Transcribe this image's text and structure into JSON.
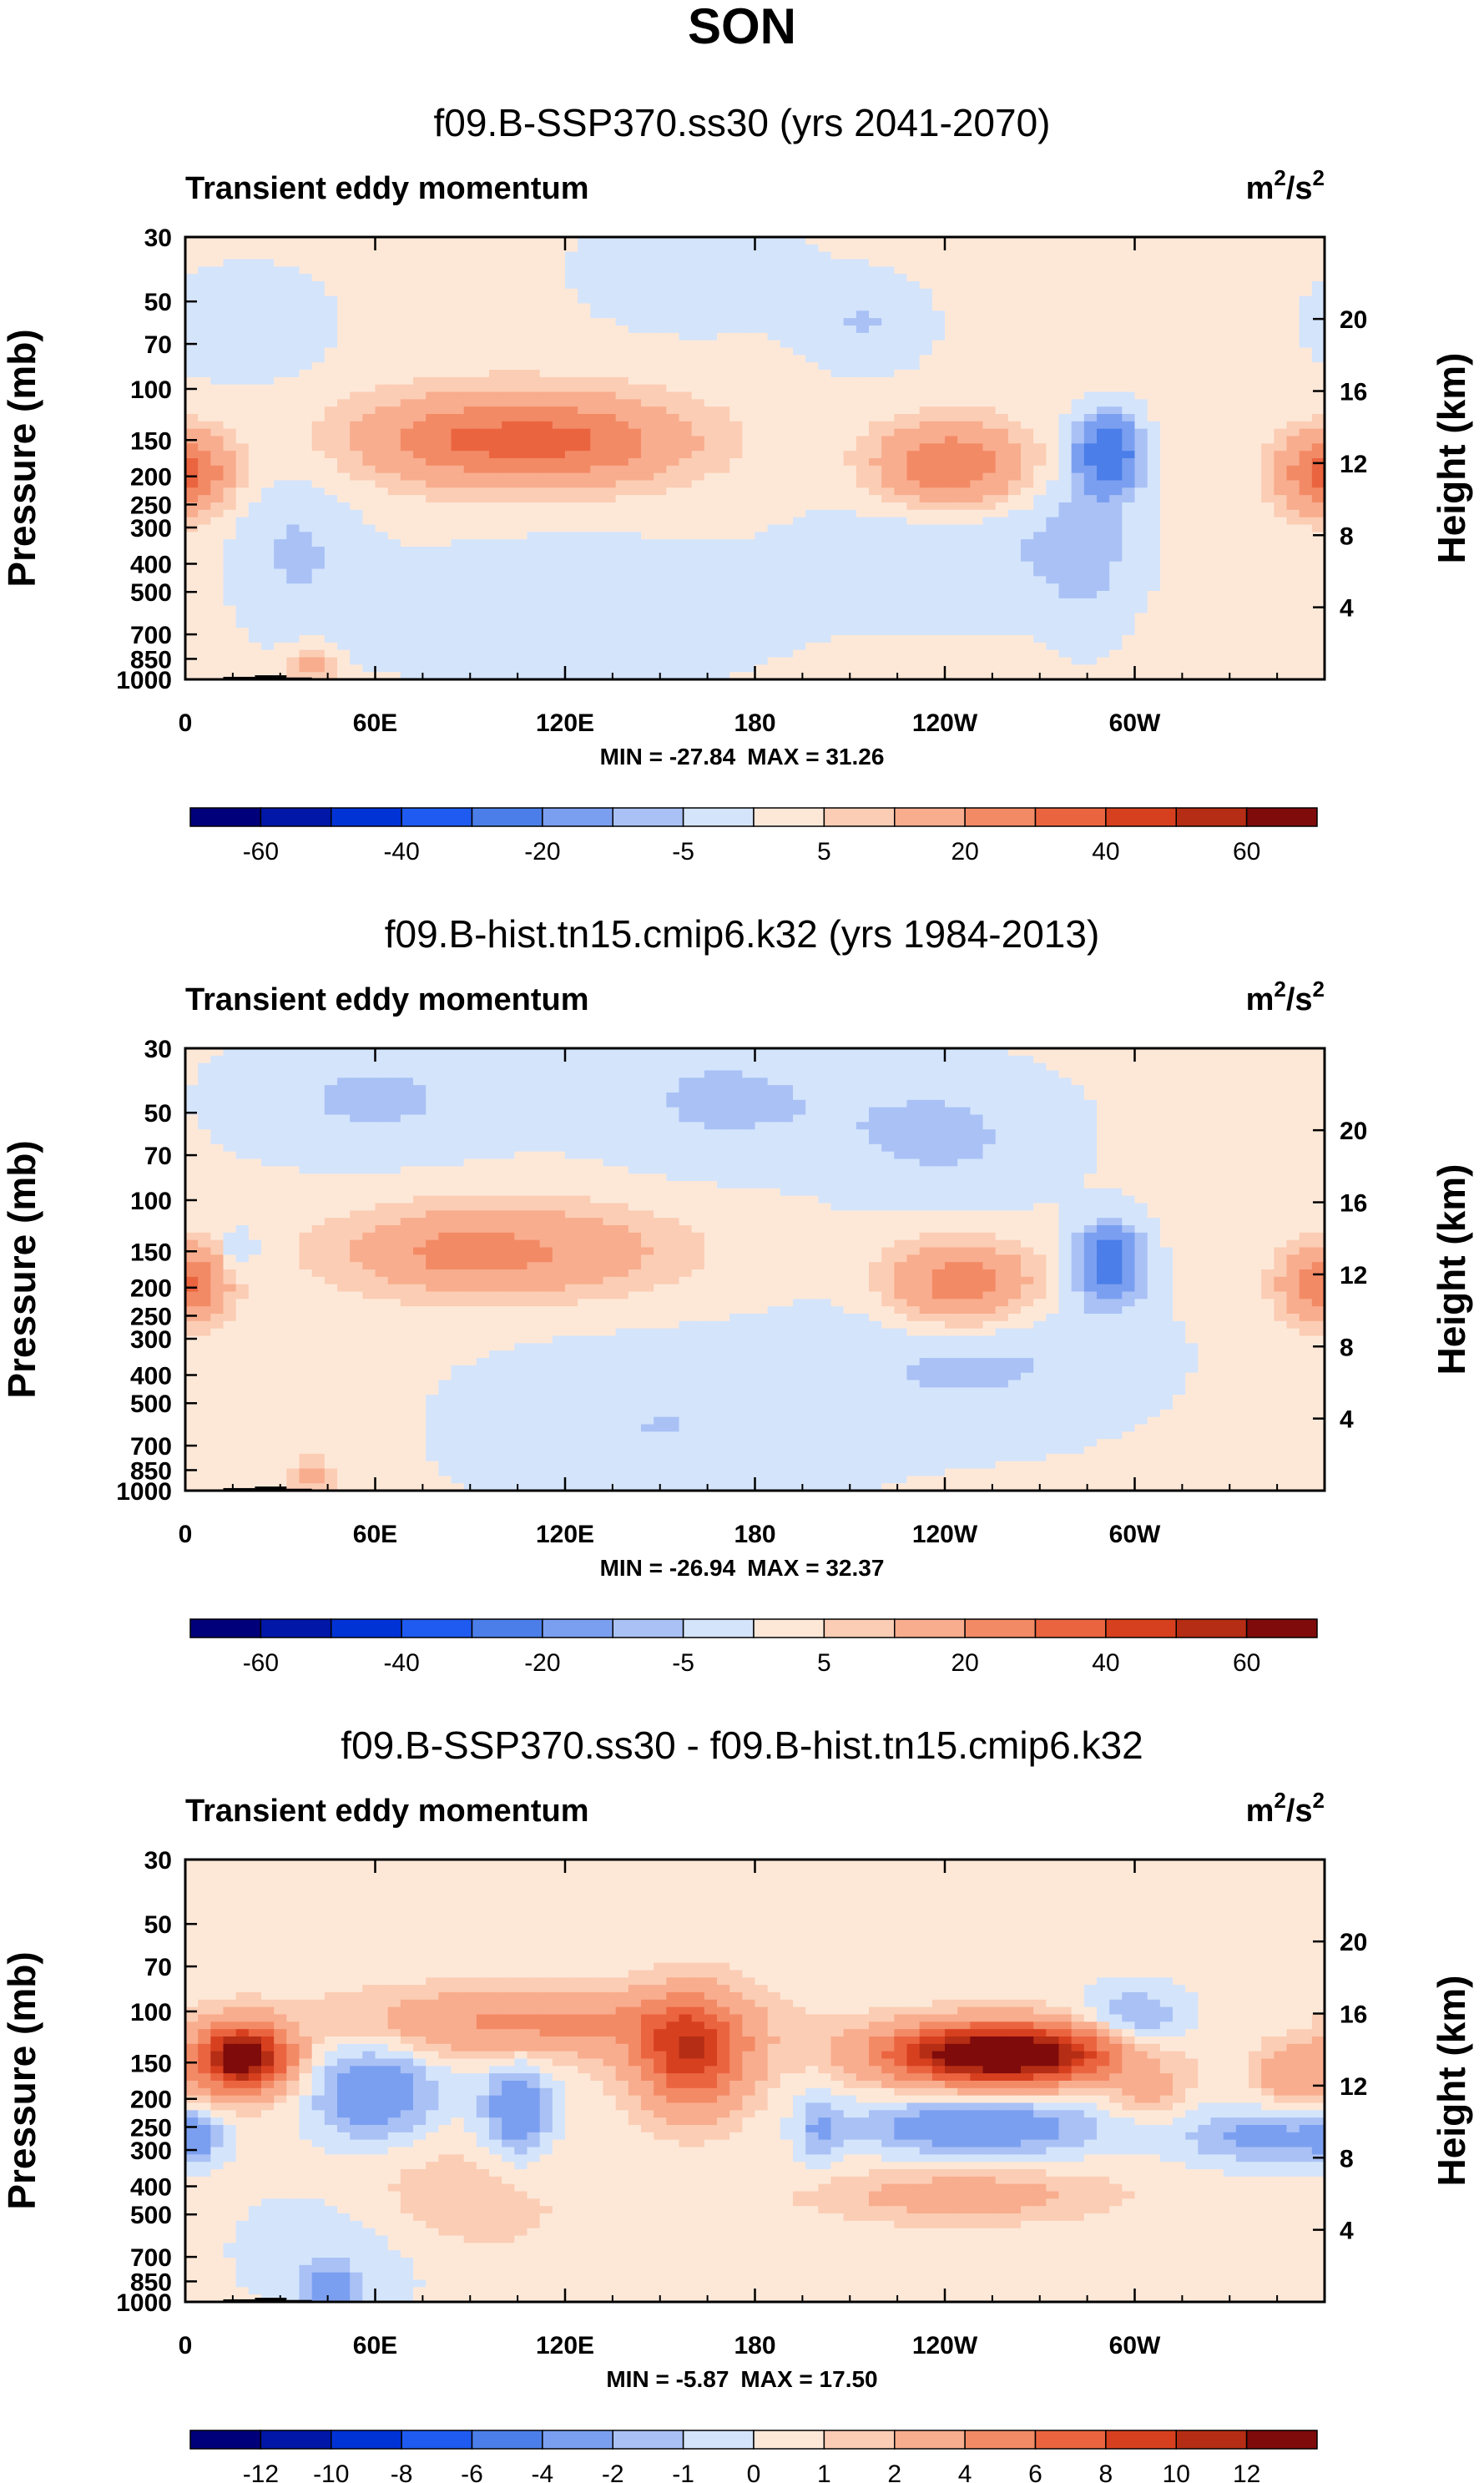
{
  "figure_title": "SON",
  "colors": {
    "wide_palette": [
      "#00007a",
      "#0017a8",
      "#0033d6",
      "#1f5bf0",
      "#4b7ee8",
      "#7b9ff0",
      "#a9c1f5",
      "#d4e4fb",
      "#fde8d8",
      "#fbcdb4",
      "#f8ad8e",
      "#f38a66",
      "#eb6440",
      "#d7401f",
      "#b52d14",
      "#7f0b0b"
    ],
    "topo": "#000000"
  },
  "chart_data": [
    {
      "type": "heatmap",
      "title": "f09.B-SSP370.ss30 (yrs 2041-2070)",
      "subtitle": "Transient eddy momentum",
      "units_base": "m",
      "units_exp": "2",
      "units_slash": "/s",
      "units_exp2": "2",
      "ylabel": "Pressure (mb)",
      "ylabel_right": "Height (km)",
      "pressure_ticks": [
        "30",
        "50",
        "70",
        "100",
        "150",
        "200",
        "250",
        "300",
        "400",
        "500",
        "700",
        "850",
        "1000"
      ],
      "height_ticks": [
        "20",
        "16",
        "12",
        "8",
        "4"
      ],
      "x_ticks": [
        "0",
        "60E",
        "120E",
        "180",
        "120W",
        "60W"
      ],
      "min_label": "MIN = -27.84",
      "max_label": "MAX =  31.26",
      "colorbar_labels": [
        "-60",
        "-40",
        "-20",
        "-5",
        "5",
        "20",
        "40",
        "60"
      ],
      "levels": [
        -70,
        -60,
        -50,
        -40,
        -30,
        -20,
        -10,
        -5,
        0,
        5,
        10,
        20,
        30,
        40,
        50,
        60,
        70
      ],
      "background_value": 2,
      "features": [
        {
          "lon": 105,
          "p": 150,
          "dlon": 34,
          "dlogp": 0.11,
          "amp": 26
        },
        {
          "lon": 125,
          "p": 155,
          "dlon": 22,
          "dlogp": 0.09,
          "amp": 8
        },
        {
          "lon": 80,
          "p": 150,
          "dlon": 14,
          "dlogp": 0.08,
          "amp": 6
        },
        {
          "lon": 242,
          "p": 185,
          "dlon": 16,
          "dlogp": 0.1,
          "amp": 29
        },
        {
          "lon": 3,
          "p": 195,
          "dlon": 9,
          "dlogp": 0.09,
          "amp": 18
        },
        {
          "lon": 357,
          "p": 195,
          "dlon": 9,
          "dlogp": 0.09,
          "amp": 18
        },
        {
          "lon": 292,
          "p": 165,
          "dlon": 7,
          "dlogp": 0.09,
          "amp": -30
        },
        {
          "lon": 285,
          "p": 350,
          "dlon": 10,
          "dlogp": 0.25,
          "amp": -6
        },
        {
          "lon": 160,
          "p": 40,
          "dlon": 25,
          "dlogp": 0.14,
          "amp": -7
        },
        {
          "lon": 215,
          "p": 60,
          "dlon": 15,
          "dlogp": 0.12,
          "amp": -7
        },
        {
          "lon": 20,
          "p": 60,
          "dlon": 18,
          "dlogp": 0.14,
          "amp": -7
        },
        {
          "lon": 250,
          "p": 350,
          "dlon": 35,
          "dlogp": 0.18,
          "amp": -7
        },
        {
          "lon": 120,
          "p": 600,
          "dlon": 50,
          "dlogp": 0.2,
          "amp": -6
        },
        {
          "lon": 35,
          "p": 350,
          "dlon": 14,
          "dlogp": 0.2,
          "amp": -7
        },
        {
          "lon": 40,
          "p": 900,
          "dlon": 5,
          "dlogp": 0.05,
          "amp": 12
        }
      ]
    },
    {
      "type": "heatmap",
      "title": "f09.B-hist.tn15.cmip6.k32 (yrs 1984-2013)",
      "subtitle": "Transient eddy momentum",
      "units_base": "m",
      "units_exp": "2",
      "units_slash": "/s",
      "units_exp2": "2",
      "ylabel": "Pressure (mb)",
      "ylabel_right": "Height (km)",
      "pressure_ticks": [
        "30",
        "50",
        "70",
        "100",
        "150",
        "200",
        "250",
        "300",
        "400",
        "500",
        "700",
        "850",
        "1000"
      ],
      "height_ticks": [
        "20",
        "16",
        "12",
        "8",
        "4"
      ],
      "x_ticks": [
        "0",
        "60E",
        "120E",
        "180",
        "120W",
        "60W"
      ],
      "min_label": "MIN = -26.94",
      "max_label": "MAX =  32.37",
      "colorbar_labels": [
        "-60",
        "-40",
        "-20",
        "-5",
        "5",
        "20",
        "40",
        "60"
      ],
      "levels": [
        -70,
        -60,
        -50,
        -40,
        -30,
        -20,
        -10,
        -5,
        0,
        5,
        10,
        20,
        30,
        40,
        50,
        60,
        70
      ],
      "background_value": 1,
      "features": [
        {
          "lon": 100,
          "p": 150,
          "dlon": 36,
          "dlogp": 0.11,
          "amp": 21
        },
        {
          "lon": 85,
          "p": 150,
          "dlon": 10,
          "dlogp": 0.06,
          "amp": 6
        },
        {
          "lon": 245,
          "p": 195,
          "dlon": 16,
          "dlogp": 0.1,
          "amp": 27
        },
        {
          "lon": 3,
          "p": 195,
          "dlon": 8,
          "dlogp": 0.09,
          "amp": 16
        },
        {
          "lon": 357,
          "p": 195,
          "dlon": 9,
          "dlogp": 0.09,
          "amp": 16
        },
        {
          "lon": 292,
          "p": 165,
          "dlon": 7,
          "dlogp": 0.09,
          "amp": -29
        },
        {
          "lon": 17,
          "p": 150,
          "dlon": 4,
          "dlogp": 0.05,
          "amp": -9
        },
        {
          "lon": 170,
          "p": 45,
          "dlon": 30,
          "dlogp": 0.16,
          "amp": -7
        },
        {
          "lon": 60,
          "p": 45,
          "dlon": 30,
          "dlogp": 0.14,
          "amp": -7
        },
        {
          "lon": 240,
          "p": 60,
          "dlon": 25,
          "dlogp": 0.16,
          "amp": -7
        },
        {
          "lon": 250,
          "p": 350,
          "dlon": 35,
          "dlogp": 0.18,
          "amp": -7
        },
        {
          "lon": 150,
          "p": 600,
          "dlon": 40,
          "dlogp": 0.2,
          "amp": -6
        },
        {
          "lon": 40,
          "p": 900,
          "dlon": 5,
          "dlogp": 0.05,
          "amp": 12
        }
      ]
    },
    {
      "type": "heatmap",
      "title": "f09.B-SSP370.ss30 - f09.B-hist.tn15.cmip6.k32",
      "subtitle": "Transient eddy momentum",
      "units_base": "m",
      "units_exp": "2",
      "units_slash": "/s",
      "units_exp2": "2",
      "ylabel": "Pressure (mb)",
      "ylabel_right": "Height (km)",
      "pressure_ticks": [
        "30",
        "50",
        "70",
        "100",
        "150",
        "200",
        "250",
        "300",
        "400",
        "500",
        "700",
        "850",
        "1000"
      ],
      "height_ticks": [
        "20",
        "16",
        "12",
        "8",
        "4"
      ],
      "x_ticks": [
        "0",
        "60E",
        "120E",
        "180",
        "120W",
        "60W"
      ],
      "min_label": "MIN =  -5.87",
      "max_label": "MAX =  17.50",
      "colorbar_labels": [
        "-12",
        "-10",
        "-8",
        "-6",
        "-4",
        "-2",
        "-1",
        "0",
        "1",
        "2",
        "4",
        "6",
        "8",
        "10",
        "12"
      ],
      "levels": [
        -14,
        -12,
        -10,
        -8,
        -6,
        -4,
        -2,
        -1,
        0,
        1,
        2,
        4,
        6,
        8,
        10,
        12,
        14
      ],
      "background_value": 0.5,
      "features": [
        {
          "lon": 18,
          "p": 145,
          "dlon": 10,
          "dlogp": 0.08,
          "amp": 14
        },
        {
          "lon": 110,
          "p": 110,
          "dlon": 40,
          "dlogp": 0.08,
          "amp": 4
        },
        {
          "lon": 160,
          "p": 140,
          "dlon": 12,
          "dlogp": 0.13,
          "amp": 9
        },
        {
          "lon": 258,
          "p": 140,
          "dlon": 25,
          "dlogp": 0.07,
          "amp": 16
        },
        {
          "lon": 60,
          "p": 190,
          "dlon": 14,
          "dlogp": 0.12,
          "amp": -4
        },
        {
          "lon": 105,
          "p": 220,
          "dlon": 8,
          "dlogp": 0.12,
          "amp": -4
        },
        {
          "lon": 250,
          "p": 250,
          "dlon": 28,
          "dlogp": 0.07,
          "amp": -4
        },
        {
          "lon": 340,
          "p": 270,
          "dlon": 18,
          "dlogp": 0.07,
          "amp": -3
        },
        {
          "lon": 3,
          "p": 270,
          "dlon": 5,
          "dlogp": 0.06,
          "amp": -3
        },
        {
          "lon": 300,
          "p": 110,
          "dlon": 12,
          "dlogp": 0.09,
          "amp": -3
        },
        {
          "lon": 200,
          "p": 250,
          "dlon": 5,
          "dlogp": 0.1,
          "amp": -2
        },
        {
          "lon": 245,
          "p": 430,
          "dlon": 30,
          "dlogp": 0.06,
          "amp": 2.5
        },
        {
          "lon": 350,
          "p": 165,
          "dlon": 8,
          "dlogp": 0.07,
          "amp": 3
        },
        {
          "lon": 305,
          "p": 195,
          "dlon": 8,
          "dlogp": 0.06,
          "amp": 2
        },
        {
          "lon": 80,
          "p": 450,
          "dlon": 25,
          "dlogp": 0.15,
          "amp": 1.5
        },
        {
          "lon": 45,
          "p": 900,
          "dlon": 6,
          "dlogp": 0.05,
          "amp": -3
        },
        {
          "lon": 50,
          "p": 650,
          "dlon": 25,
          "dlogp": 0.18,
          "amp": -1.5
        }
      ]
    }
  ]
}
